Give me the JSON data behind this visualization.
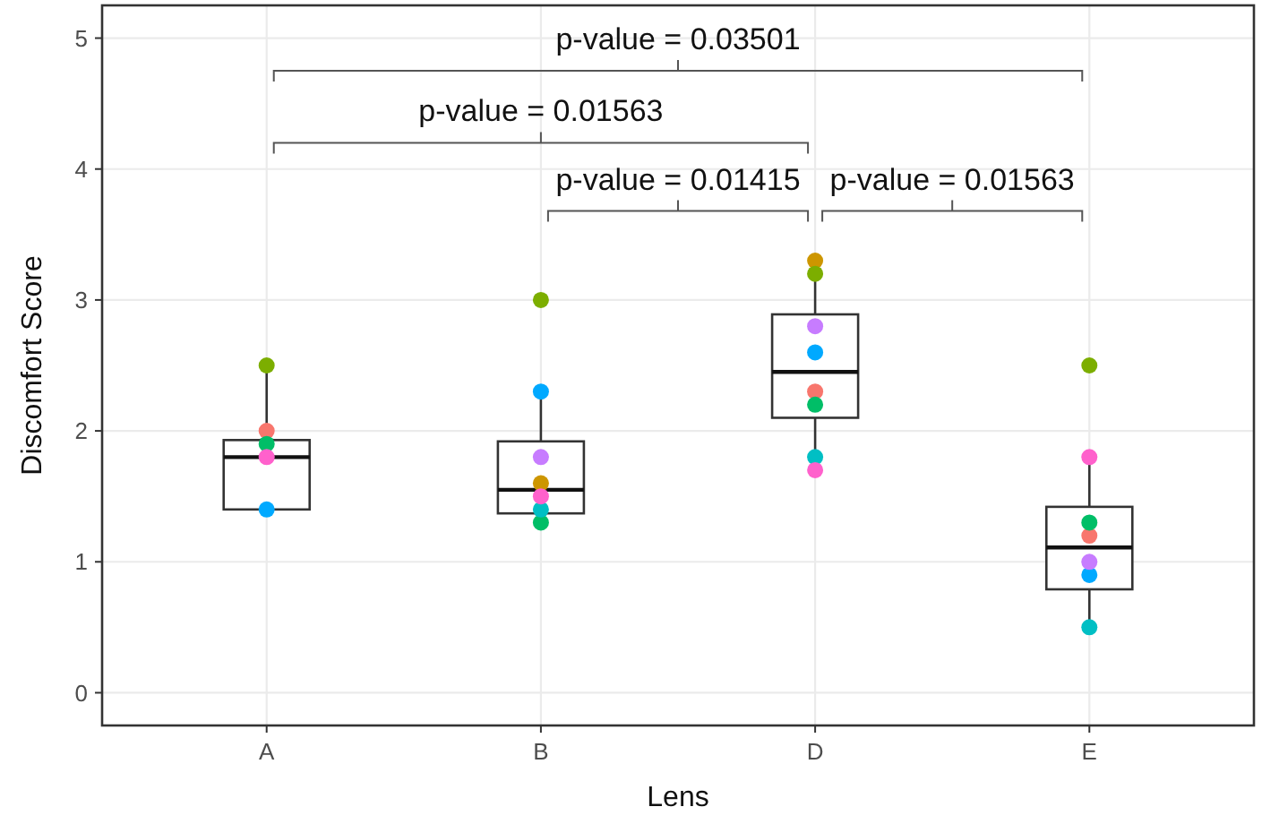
{
  "chart_data": {
    "type": "box",
    "xlabel": "Lens",
    "ylabel": "Discomfort Score",
    "categories": [
      "A",
      "B",
      "D",
      "E"
    ],
    "ylim": [
      -0.25,
      5.25
    ],
    "yticks": [
      0,
      1,
      2,
      3,
      4,
      5
    ],
    "grid": true,
    "boxes": [
      {
        "low": 1.4,
        "q1": 1.4,
        "median": 1.8,
        "q3": 1.93,
        "high": 2.5
      },
      {
        "low": 1.3,
        "q1": 1.37,
        "median": 1.55,
        "q3": 1.92,
        "high": 2.3
      },
      {
        "low": 1.7,
        "q1": 2.1,
        "median": 2.45,
        "q3": 2.89,
        "high": 3.3
      },
      {
        "low": 0.5,
        "q1": 0.79,
        "median": 1.11,
        "q3": 1.42,
        "high": 1.8
      }
    ],
    "series": [
      {
        "type": "scatter",
        "color": "#f8766d",
        "x": [
          "A",
          "D",
          "E"
        ],
        "values": [
          2.0,
          2.3,
          1.2
        ]
      },
      {
        "type": "scatter",
        "color": "#cd9600",
        "x": [
          "B",
          "D"
        ],
        "values": [
          1.6,
          3.3
        ]
      },
      {
        "type": "scatter",
        "color": "#7cae00",
        "x": [
          "A",
          "B",
          "D",
          "E"
        ],
        "values": [
          2.5,
          3.0,
          3.2,
          2.5
        ]
      },
      {
        "type": "scatter",
        "color": "#00be67",
        "x": [
          "A",
          "B",
          "D",
          "E"
        ],
        "values": [
          1.9,
          1.3,
          2.2,
          1.3
        ]
      },
      {
        "type": "scatter",
        "color": "#00bfc4",
        "x": [
          "B",
          "D",
          "E"
        ],
        "values": [
          1.4,
          1.8,
          0.5
        ]
      },
      {
        "type": "scatter",
        "color": "#00a9ff",
        "x": [
          "A",
          "B",
          "D",
          "E"
        ],
        "values": [
          1.4,
          2.3,
          2.6,
          0.9
        ]
      },
      {
        "type": "scatter",
        "color": "#c77cff",
        "x": [
          "B",
          "D",
          "E"
        ],
        "values": [
          1.8,
          2.8,
          1.0
        ]
      },
      {
        "type": "scatter",
        "color": "#ff61cc",
        "x": [
          "A",
          "B",
          "D",
          "E"
        ],
        "values": [
          1.8,
          1.5,
          1.7,
          1.8
        ]
      }
    ],
    "marker": "circle",
    "annotations": [
      "p-value = 0.03501",
      "p-value = 0.01563",
      "p-value = 0.01415",
      "p-value = 0.01563"
    ]
  }
}
